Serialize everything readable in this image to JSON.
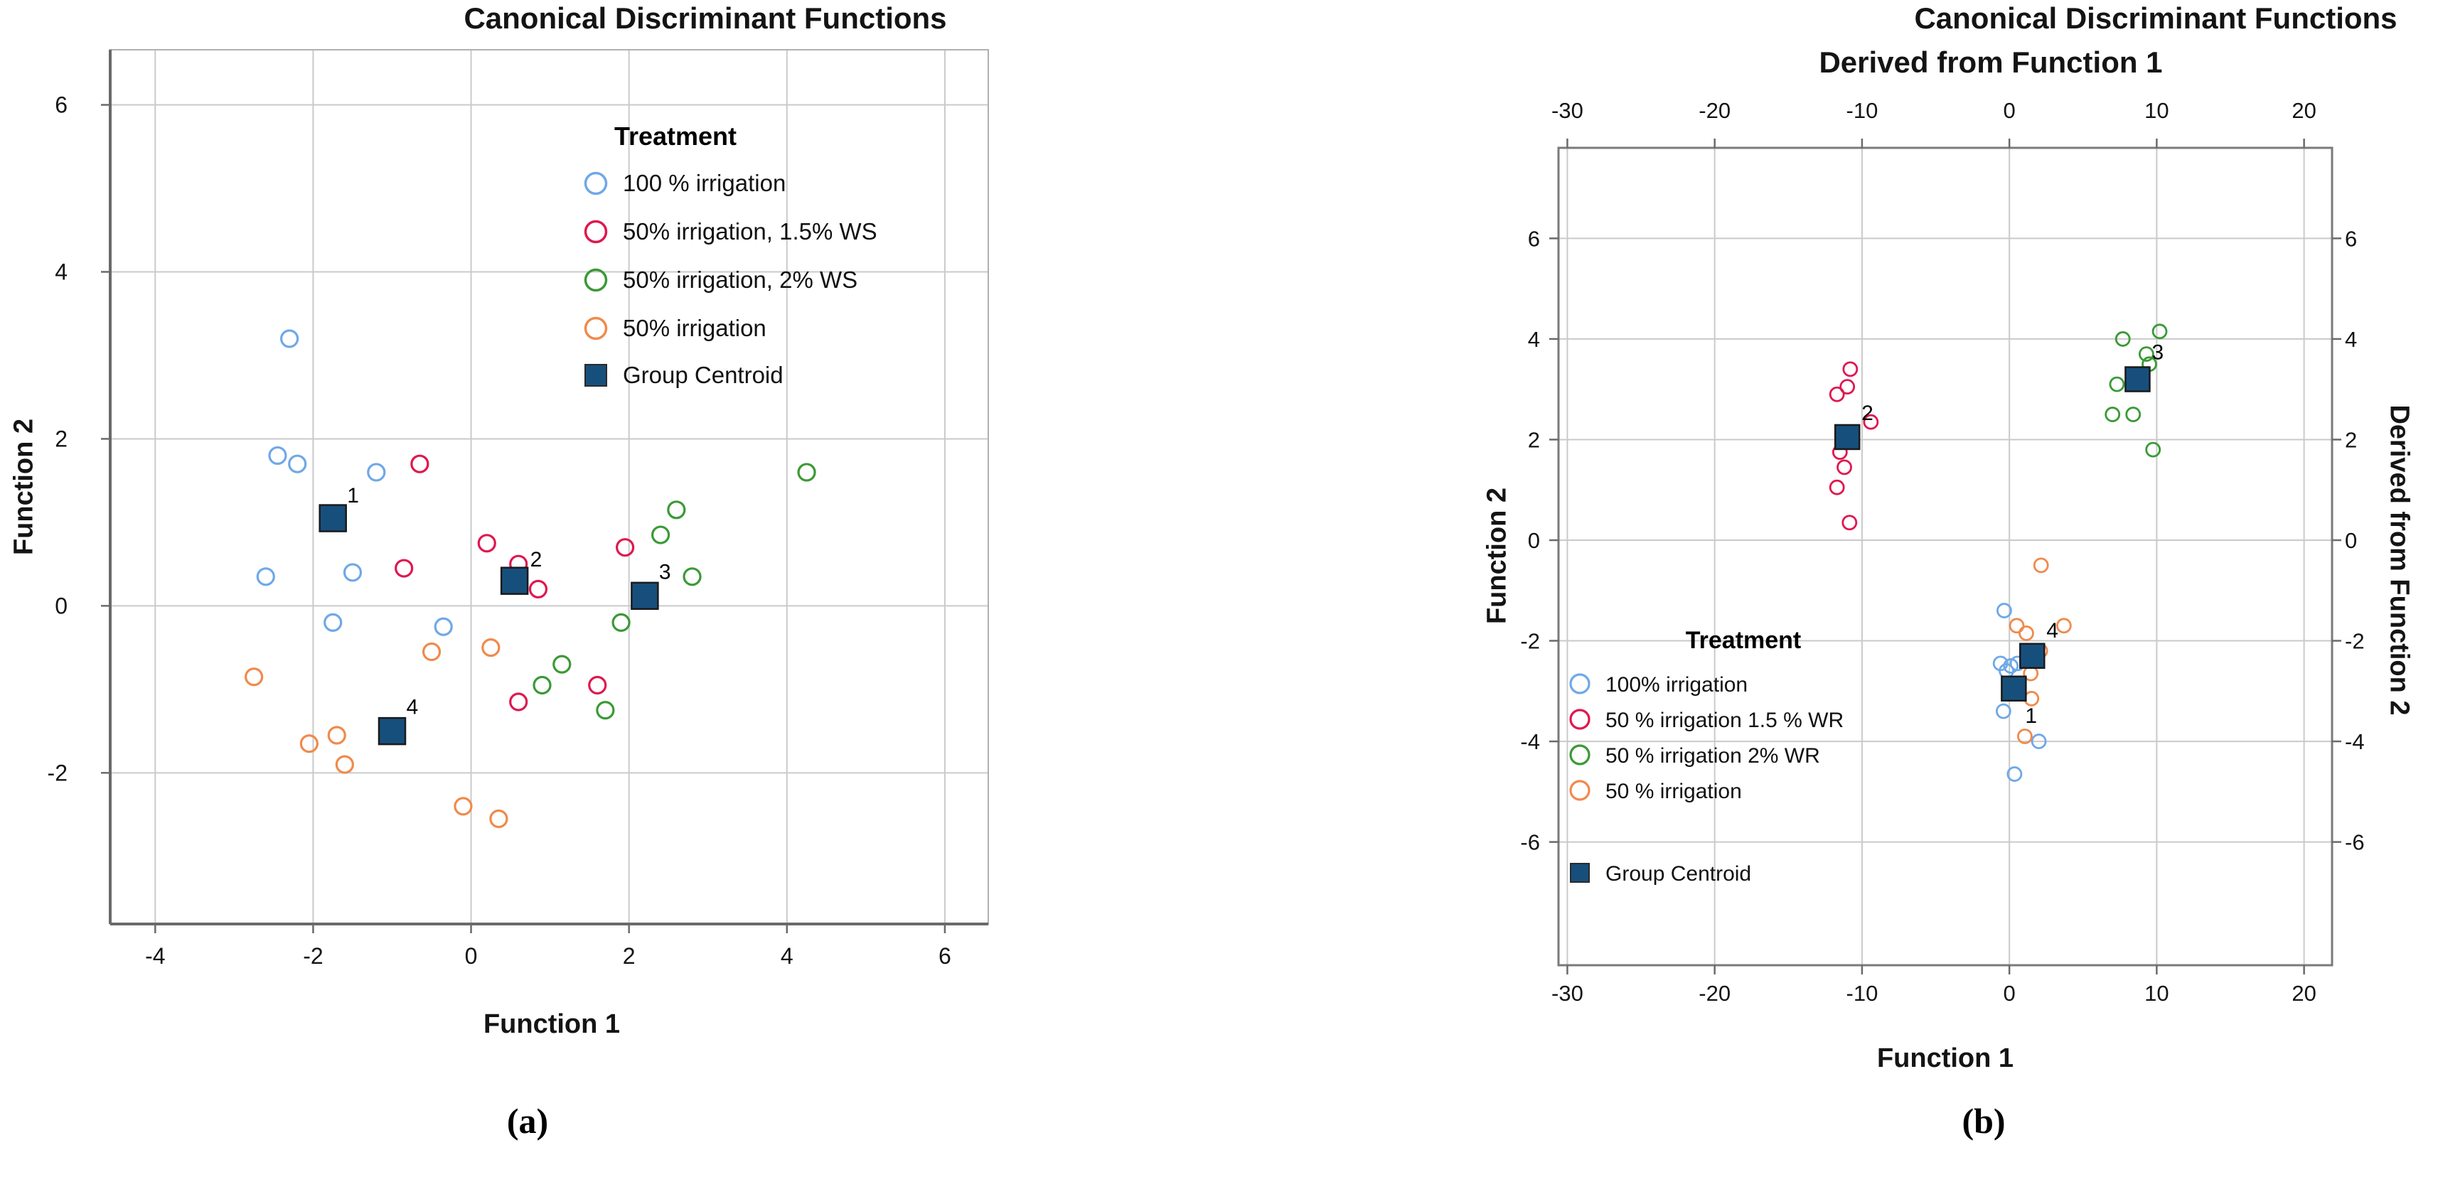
{
  "page": {
    "background": "#ffffff"
  },
  "colors": {
    "blue": "#6FA8E8",
    "red": "#E0174F",
    "green": "#3A9A35",
    "orange": "#F08A4C",
    "navy": "#174F7C",
    "grid": "#C9CACB",
    "axis": "#6A6A6A",
    "frame_light": "#B0B0B0",
    "frame_dark": "#7A7A7A",
    "text": "#141414"
  },
  "chart_data": [
    {
      "id": "left",
      "type": "scatter",
      "title": "Canonical Discriminant Functions",
      "xlabel": "Function 1",
      "ylabel": "Function 2",
      "caption": "(a)",
      "xlim": [
        -4.57,
        6.55
      ],
      "ylim": [
        -3.81,
        6.66
      ],
      "xticks": [
        -4,
        -2,
        0,
        2,
        4,
        6
      ],
      "yticks": [
        6,
        4,
        2,
        0,
        -2
      ],
      "grid": true,
      "legend_title": "Treatment",
      "legend_position": "inside-top-center",
      "series": [
        {
          "name": "100 % irrigation",
          "marker": "circle",
          "color_key": "blue",
          "points": [
            [
              -2.3,
              3.2
            ],
            [
              -2.45,
              1.8
            ],
            [
              -2.2,
              1.7
            ],
            [
              -1.2,
              1.6
            ],
            [
              -2.6,
              0.35
            ],
            [
              -1.5,
              0.4
            ],
            [
              -1.75,
              -0.2
            ],
            [
              -0.35,
              -0.25
            ]
          ]
        },
        {
          "name": "50% irrigation, 1.5% WS",
          "marker": "circle",
          "color_key": "red",
          "points": [
            [
              -0.65,
              1.7
            ],
            [
              -0.85,
              0.45
            ],
            [
              0.2,
              0.75
            ],
            [
              0.6,
              0.5
            ],
            [
              0.85,
              0.2
            ],
            [
              1.95,
              0.7
            ],
            [
              0.6,
              -1.15
            ],
            [
              1.6,
              -0.95
            ]
          ]
        },
        {
          "name": "50% irrigation, 2% WS",
          "marker": "circle",
          "color_key": "green",
          "points": [
            [
              4.25,
              1.6
            ],
            [
              2.6,
              1.15
            ],
            [
              2.4,
              0.85
            ],
            [
              2.8,
              0.35
            ],
            [
              1.9,
              -0.2
            ],
            [
              1.15,
              -0.7
            ],
            [
              0.9,
              -0.95
            ],
            [
              1.7,
              -1.25
            ]
          ]
        },
        {
          "name": "50% irrigation",
          "marker": "circle",
          "color_key": "orange",
          "points": [
            [
              -2.75,
              -0.85
            ],
            [
              -0.5,
              -0.55
            ],
            [
              0.25,
              -0.5
            ],
            [
              -1.7,
              -1.55
            ],
            [
              -2.05,
              -1.65
            ],
            [
              -1.6,
              -1.9
            ],
            [
              -0.1,
              -2.4
            ],
            [
              0.35,
              -2.55
            ]
          ]
        },
        {
          "name": "Group Centroid",
          "marker": "square",
          "color_key": "navy",
          "points": [
            [
              -1.75,
              1.05
            ],
            [
              0.55,
              0.3
            ],
            [
              2.2,
              0.12
            ],
            [
              -1.0,
              -1.5
            ]
          ],
          "point_labels": [
            "1",
            "2",
            "3",
            "4"
          ],
          "label_dx": [
            20,
            22,
            20,
            20
          ],
          "label_dy": [
            -22,
            -20,
            -24,
            -24
          ]
        }
      ]
    },
    {
      "id": "right",
      "type": "scatter",
      "title": "Canonical Discriminant Functions",
      "subtitle": "Derived from Function 1",
      "xlabel": "Function 1",
      "ylabel": "Function 2",
      "ylabel_right": "Derived from Function 2",
      "caption": "(b)",
      "xlim": [
        -30.6,
        21.9
      ],
      "ylim": [
        -8.45,
        7.8
      ],
      "xticks": [
        -30,
        -20,
        -10,
        0,
        10,
        20
      ],
      "yticks": [
        6,
        4,
        2,
        0,
        -2,
        -4,
        -6
      ],
      "grid": true,
      "legend_title": "Treatment",
      "legend_position": "inside-bottom-left",
      "series": [
        {
          "name": "100% irrigation",
          "marker": "circle",
          "color_key": "blue",
          "points": [
            [
              -0.35,
              -1.4
            ],
            [
              -0.6,
              -2.45
            ],
            [
              0.1,
              -2.5
            ],
            [
              0.55,
              -2.45
            ],
            [
              -0.2,
              -2.6
            ],
            [
              -0.4,
              -3.4
            ],
            [
              2.0,
              -4.0
            ],
            [
              0.35,
              -4.65
            ]
          ]
        },
        {
          "name": "50 % irrigation 1.5 % WR",
          "marker": "circle",
          "color_key": "red",
          "points": [
            [
              -10.8,
              3.4
            ],
            [
              -11.0,
              3.05
            ],
            [
              -11.7,
              2.9
            ],
            [
              -9.4,
              2.35
            ],
            [
              -11.5,
              1.75
            ],
            [
              -11.2,
              1.45
            ],
            [
              -11.7,
              1.05
            ],
            [
              -10.85,
              0.35
            ]
          ]
        },
        {
          "name": "50 % irrigation 2% WR",
          "marker": "circle",
          "color_key": "green",
          "points": [
            [
              7.7,
              4.0
            ],
            [
              10.2,
              4.15
            ],
            [
              9.3,
              3.7
            ],
            [
              9.5,
              3.5
            ],
            [
              7.3,
              3.1
            ],
            [
              7.0,
              2.5
            ],
            [
              8.4,
              2.5
            ],
            [
              9.75,
              1.8
            ]
          ]
        },
        {
          "name": " 50 % irrigation",
          "marker": "circle",
          "color_key": "orange",
          "points": [
            [
              2.15,
              -0.5
            ],
            [
              0.5,
              -1.7
            ],
            [
              1.15,
              -1.85
            ],
            [
              3.7,
              -1.7
            ],
            [
              1.45,
              -2.65
            ],
            [
              2.1,
              -2.2
            ],
            [
              1.5,
              -3.15
            ],
            [
              1.05,
              -3.9
            ]
          ]
        },
        {
          "name": "Group Centroid",
          "marker": "square",
          "color_key": "navy",
          "points": [
            [
              0.3,
              -2.95
            ],
            [
              -11.0,
              2.05
            ],
            [
              8.7,
              3.2
            ],
            [
              1.55,
              -2.3
            ]
          ],
          "point_labels": [
            "1",
            "2",
            "3",
            "4"
          ],
          "label_dx": [
            16,
            20,
            20,
            20
          ],
          "label_dy": [
            48,
            -24,
            -28,
            -26
          ]
        }
      ]
    }
  ]
}
